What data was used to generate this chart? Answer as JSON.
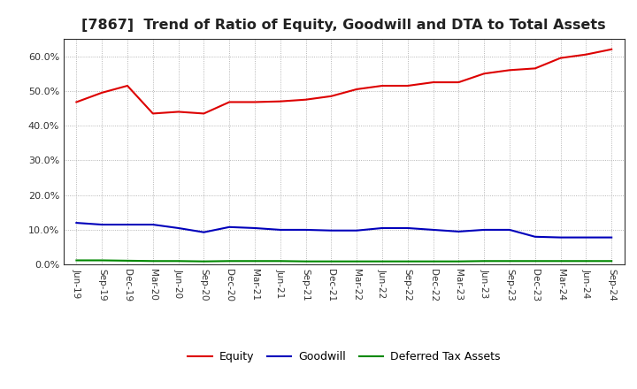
{
  "title": "[7867]  Trend of Ratio of Equity, Goodwill and DTA to Total Assets",
  "x_labels": [
    "Jun-19",
    "Sep-19",
    "Dec-19",
    "Mar-20",
    "Jun-20",
    "Sep-20",
    "Dec-20",
    "Mar-21",
    "Jun-21",
    "Sep-21",
    "Dec-21",
    "Mar-22",
    "Jun-22",
    "Sep-22",
    "Dec-22",
    "Mar-23",
    "Jun-23",
    "Sep-23",
    "Dec-23",
    "Mar-24",
    "Jun-24",
    "Sep-24"
  ],
  "equity": [
    46.8,
    49.5,
    51.5,
    43.5,
    44.0,
    43.5,
    46.8,
    46.8,
    47.0,
    47.5,
    48.5,
    50.5,
    51.5,
    51.5,
    52.5,
    52.5,
    55.0,
    56.0,
    56.5,
    59.5,
    60.5,
    62.0
  ],
  "goodwill": [
    12.0,
    11.5,
    11.5,
    11.5,
    10.5,
    9.3,
    10.8,
    10.5,
    10.0,
    10.0,
    9.8,
    9.8,
    10.5,
    10.5,
    10.0,
    9.5,
    10.0,
    10.0,
    8.0,
    7.8,
    7.8,
    7.8
  ],
  "dta": [
    1.2,
    1.2,
    1.1,
    1.0,
    1.0,
    0.9,
    1.0,
    1.0,
    1.0,
    0.9,
    0.9,
    0.9,
    0.9,
    0.9,
    0.9,
    0.9,
    1.0,
    1.0,
    1.0,
    1.0,
    1.0,
    1.0
  ],
  "equity_color": "#dd0000",
  "goodwill_color": "#0000bb",
  "dta_color": "#008800",
  "ylim": [
    0,
    65
  ],
  "yticks": [
    0,
    10,
    20,
    30,
    40,
    50,
    60
  ],
  "background_color": "#ffffff",
  "plot_bg_color": "#ffffff",
  "grid_color": "#999999",
  "title_fontsize": 11.5,
  "legend_labels": [
    "Equity",
    "Goodwill",
    "Deferred Tax Assets"
  ]
}
